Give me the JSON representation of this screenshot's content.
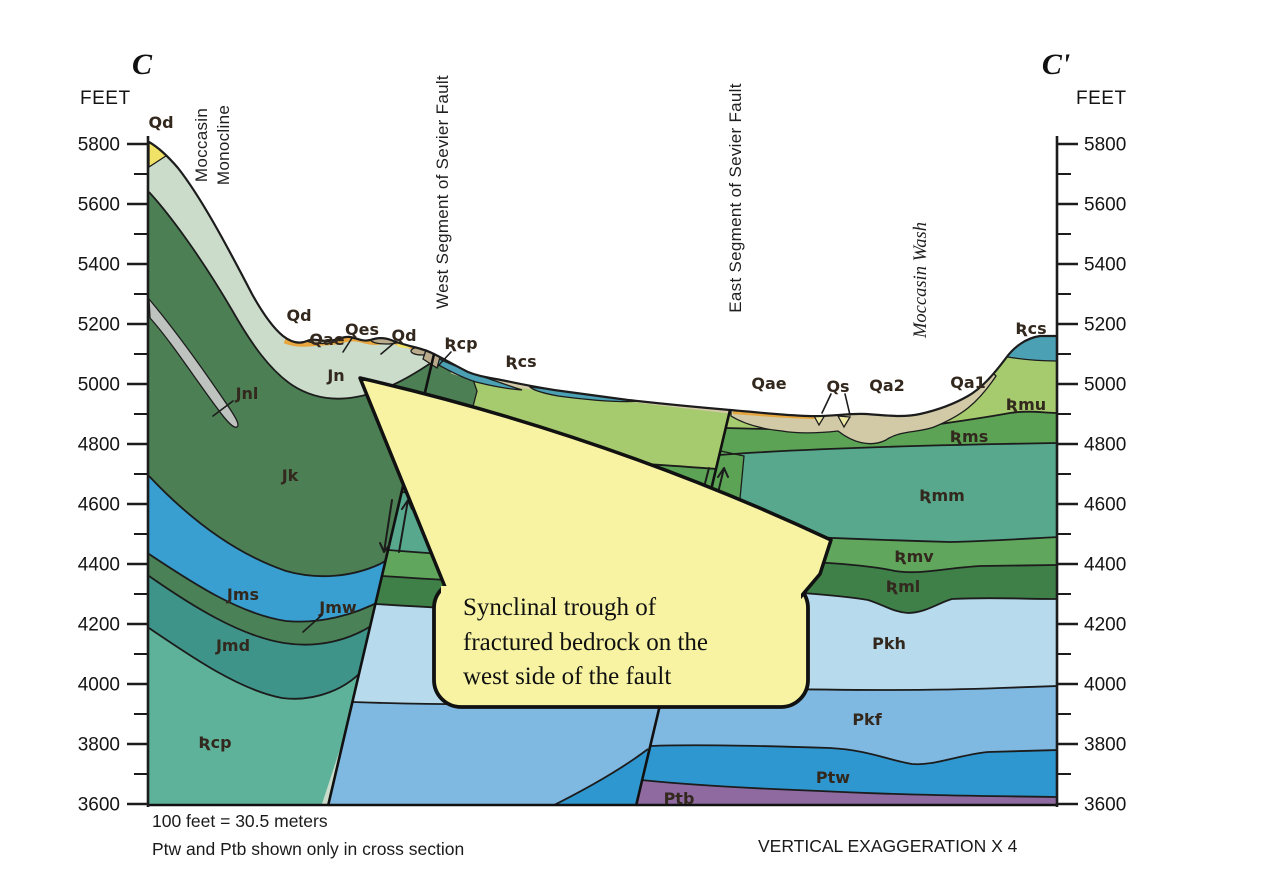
{
  "section": {
    "left_end_label": "C",
    "right_end_label": "C'",
    "axis_unit": "FEET",
    "elevation_ticks": [
      "5800",
      "5600",
      "5400",
      "5200",
      "5000",
      "4800",
      "4600",
      "4400",
      "4200",
      "4000",
      "3800",
      "3600"
    ]
  },
  "structures": {
    "west_fault": "West Segment of Sevier Fault",
    "east_fault": "East Segment of Sevier Fault",
    "monocline_line1": "Moccasin",
    "monocline_line2": "Monocline",
    "wash": "Moccasin Wash"
  },
  "units": {
    "qd": "Qd",
    "qae": "Qae",
    "qes": "Qes",
    "qs": "Qs",
    "qa2": "Qa2",
    "qa1": "Qa1",
    "jn": "Jn",
    "jnl": "Jnl",
    "jk": "Jk",
    "jms": "Jms",
    "jmw": "Jmw",
    "jmd": "Jmd",
    "trcp": "Ʀcp",
    "trcs": "Ʀcs",
    "trmu": "Ʀmu",
    "trms": "Ʀms",
    "trmm": "Ʀmm",
    "trmv": "Ʀmv",
    "trml": "Ʀml",
    "pkh": "Pkh",
    "pkf": "Pkf",
    "ptw": "Ptw",
    "ptb": "Ptb"
  },
  "callout": {
    "line1": "Synclinal trough of",
    "line2": "fractured bedrock on the",
    "line3": "west side of the fault"
  },
  "notes": {
    "scale": "100 feet = 30.5 meters",
    "visibility": "Ptw and Ptb shown only in cross section",
    "exaggeration": "VERTICAL EXAGGERATION X 4"
  },
  "colors": {
    "jn": "#cbdccb",
    "qd": "#f0e266",
    "jk": "#4c7f54",
    "jnl": "#bfc3bf",
    "jms": "#389fd0",
    "jmw": "#4a8156",
    "jmd": "#3f948a",
    "trcp": "#5fb29a",
    "trcs": "#4ba0b4",
    "trmu": "#a6ca6e",
    "trms": "#5ca355",
    "trmm": "#57a88c",
    "trmv": "#60a65c",
    "trml": "#3f7f48",
    "pkh": "#b7daec",
    "pkf": "#7fb8e0",
    "ptw": "#2f97cf",
    "ptb": "#8e6aa0",
    "qae": "#e7a63e",
    "qa_khaki": "#d2caa6",
    "q_tan": "#b9ab8c",
    "qs": "#efe9a6",
    "callout": "#f7f3a2",
    "outline": "#1c1c1c"
  }
}
